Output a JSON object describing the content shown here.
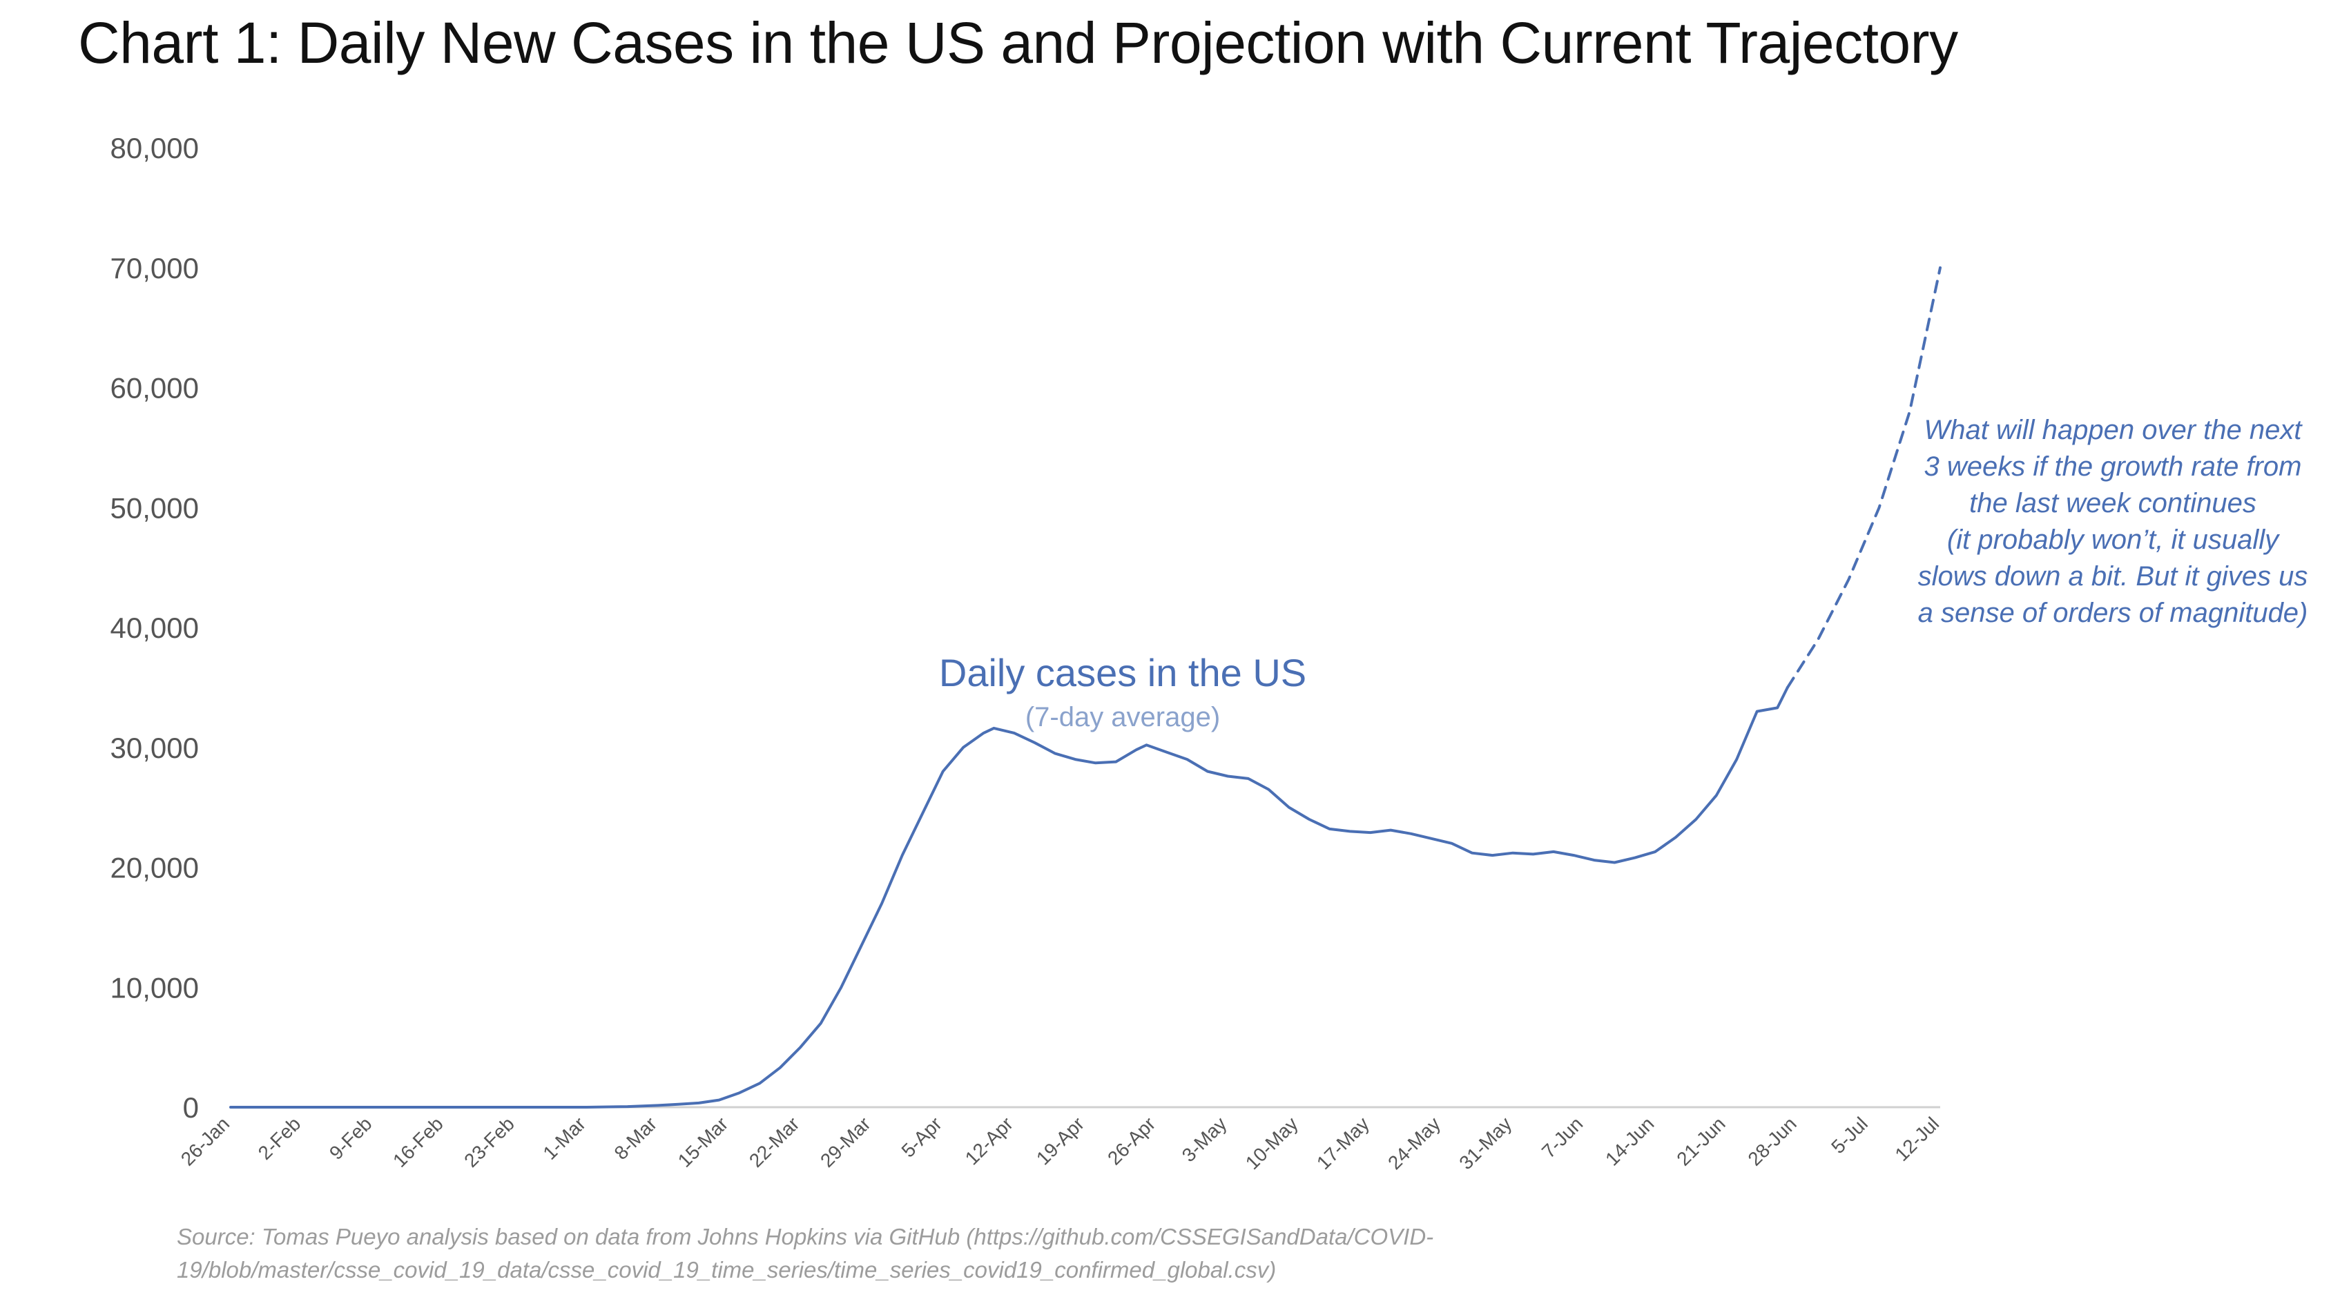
{
  "chart_data": {
    "type": "line",
    "title": "Chart 1: Daily New Cases in the US and Projection with Current Trajectory",
    "xlabel": "",
    "ylabel": "",
    "ylim": [
      0,
      80000
    ],
    "yticks": [
      0,
      10000,
      20000,
      30000,
      40000,
      50000,
      60000,
      70000,
      80000
    ],
    "ytick_labels": [
      "0",
      "10,000",
      "20,000",
      "30,000",
      "40,000",
      "50,000",
      "60,000",
      "70,000",
      "80,000"
    ],
    "xlim": [
      "2020-01-26",
      "2020-07-12"
    ],
    "xtick_labels": [
      "26-Jan",
      "2-Feb",
      "9-Feb",
      "16-Feb",
      "23-Feb",
      "1-Mar",
      "8-Mar",
      "15-Mar",
      "22-Mar",
      "29-Mar",
      "5-Apr",
      "12-Apr",
      "19-Apr",
      "26-Apr",
      "3-May",
      "10-May",
      "17-May",
      "24-May",
      "31-May",
      "7-Jun",
      "14-Jun",
      "21-Jun",
      "28-Jun",
      "5-Jul",
      "12-Jul"
    ],
    "grid": false,
    "legend": "none",
    "series": [
      {
        "name": "Daily cases in the US",
        "subtitle": "(7-day average)",
        "style": "solid",
        "color": "#4a6fb4",
        "points": [
          [
            "2020-01-26",
            0
          ],
          [
            "2020-02-02",
            0
          ],
          [
            "2020-02-09",
            0
          ],
          [
            "2020-02-16",
            0
          ],
          [
            "2020-02-23",
            0
          ],
          [
            "2020-03-01",
            0
          ],
          [
            "2020-03-05",
            50
          ],
          [
            "2020-03-08",
            150
          ],
          [
            "2020-03-10",
            250
          ],
          [
            "2020-03-12",
            350
          ],
          [
            "2020-03-14",
            600
          ],
          [
            "2020-03-16",
            1200
          ],
          [
            "2020-03-18",
            2000
          ],
          [
            "2020-03-20",
            3300
          ],
          [
            "2020-03-22",
            5000
          ],
          [
            "2020-03-24",
            7000
          ],
          [
            "2020-03-26",
            10000
          ],
          [
            "2020-03-28",
            13500
          ],
          [
            "2020-03-30",
            17000
          ],
          [
            "2020-04-01",
            21000
          ],
          [
            "2020-04-03",
            24500
          ],
          [
            "2020-04-05",
            28000
          ],
          [
            "2020-04-07",
            30000
          ],
          [
            "2020-04-09",
            31200
          ],
          [
            "2020-04-10",
            31600
          ],
          [
            "2020-04-12",
            31200
          ],
          [
            "2020-04-14",
            30400
          ],
          [
            "2020-04-16",
            29500
          ],
          [
            "2020-04-18",
            29000
          ],
          [
            "2020-04-20",
            28700
          ],
          [
            "2020-04-22",
            28800
          ],
          [
            "2020-04-24",
            29800
          ],
          [
            "2020-04-25",
            30200
          ],
          [
            "2020-04-27",
            29600
          ],
          [
            "2020-04-29",
            29000
          ],
          [
            "2020-05-01",
            28000
          ],
          [
            "2020-05-03",
            27600
          ],
          [
            "2020-05-05",
            27400
          ],
          [
            "2020-05-07",
            26500
          ],
          [
            "2020-05-09",
            25000
          ],
          [
            "2020-05-11",
            24000
          ],
          [
            "2020-05-13",
            23200
          ],
          [
            "2020-05-15",
            23000
          ],
          [
            "2020-05-17",
            22900
          ],
          [
            "2020-05-19",
            23100
          ],
          [
            "2020-05-21",
            22800
          ],
          [
            "2020-05-23",
            22400
          ],
          [
            "2020-05-25",
            22000
          ],
          [
            "2020-05-27",
            21200
          ],
          [
            "2020-05-29",
            21000
          ],
          [
            "2020-05-31",
            21200
          ],
          [
            "2020-06-02",
            21100
          ],
          [
            "2020-06-04",
            21300
          ],
          [
            "2020-06-06",
            21000
          ],
          [
            "2020-06-08",
            20600
          ],
          [
            "2020-06-10",
            20400
          ],
          [
            "2020-06-12",
            20800
          ],
          [
            "2020-06-14",
            21300
          ],
          [
            "2020-06-16",
            22500
          ],
          [
            "2020-06-18",
            24000
          ],
          [
            "2020-06-20",
            26000
          ],
          [
            "2020-06-22",
            29000
          ],
          [
            "2020-06-24",
            33000
          ],
          [
            "2020-06-26",
            33300
          ],
          [
            "2020-06-27",
            35000
          ]
        ]
      },
      {
        "name": "",
        "style": "dashed",
        "color": "#4a6fb4",
        "points": [
          [
            "2020-06-27",
            35000
          ],
          [
            "2020-06-30",
            39000
          ],
          [
            "2020-07-03",
            44000
          ],
          [
            "2020-07-06",
            50000
          ],
          [
            "2020-07-09",
            58000
          ],
          [
            "2020-07-12",
            70000
          ]
        ]
      }
    ],
    "annotations": [
      {
        "text": "What will happen over the next 3 weeks if the growth rate from the last week continues (it probably won’t, it usually slows down a bit. But it gives us a sense of orders of magnitude)",
        "lines": [
          "What will happen over the next",
          "3 weeks if the growth rate from",
          "the last week continues",
          "(it probably won’t, it usually",
          "slows down a bit. But it gives us",
          "a sense of orders of magnitude)"
        ]
      }
    ],
    "source": "Source: Tomas Pueyo analysis based on data from Johns Hopkins via GitHub (https://github.com/CSSEGISandData/COVID-19/blob/master/csse_covid_19_data/csse_covid_19_time_series/time_series_covid19_confirmed_global.csv)"
  }
}
